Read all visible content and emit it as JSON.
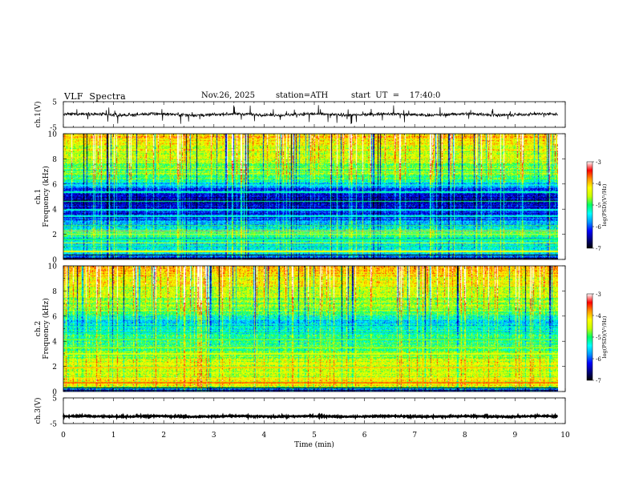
{
  "header": {
    "title": "VLF  Spectra",
    "date": "Nov.26, 2025",
    "station": "station=ATH",
    "start_ut": "start  UT  =    17:40:0"
  },
  "colors": {
    "colormap": [
      "#000000",
      "#000080",
      "#0000ff",
      "#0096ff",
      "#00ffff",
      "#00ff64",
      "#c8ff00",
      "#ffff00",
      "#ff9600",
      "#ff0000",
      "#ffffff"
    ],
    "trace": "#000000"
  },
  "chart_data": [
    {
      "type": "line",
      "id": "ch1",
      "ylabel": "ch.1(V)",
      "xlim": [
        0,
        10
      ],
      "ylim": [
        -5,
        5
      ],
      "yticks": [
        "5",
        "-5"
      ],
      "trace_level": 0,
      "noise_amplitude": 0.6,
      "spike_amplitude": 2.2
    },
    {
      "type": "heatmap",
      "id": "ch1-spectrogram",
      "ylabel_top": "ch.1",
      "ylabel": "Frequency  (kHz)",
      "xlim": [
        0,
        9.85
      ],
      "ylim": [
        0,
        10
      ],
      "yticks": [
        "0",
        "2",
        "4",
        "6",
        "8",
        "10"
      ],
      "colorbar": {
        "label": "log(PSD)(V²/Hz)",
        "range": [
          -7,
          -3
        ],
        "ticks": [
          "-3",
          "-4",
          "-5",
          "-6",
          "-7"
        ]
      },
      "profile_kHz": [
        [
          0.0,
          -6.9
        ],
        [
          0.5,
          -5.3
        ],
        [
          1.0,
          -5.4
        ],
        [
          1.6,
          -5.6
        ],
        [
          2.1,
          -4.9
        ],
        [
          2.6,
          -5.6
        ],
        [
          3.2,
          -6.1
        ],
        [
          3.8,
          -6.3
        ],
        [
          4.6,
          -6.5
        ],
        [
          5.3,
          -6.3
        ],
        [
          5.8,
          -5.9
        ],
        [
          6.5,
          -5.0
        ],
        [
          8.0,
          -4.7
        ],
        [
          10.0,
          -4.3
        ]
      ],
      "bands_kHz": [
        [
          0.1,
          -6.9
        ],
        [
          0.35,
          -7.0
        ],
        [
          0.65,
          -4.2
        ],
        [
          1.05,
          -5.0
        ],
        [
          1.3,
          -4.4
        ],
        [
          1.6,
          -5.0
        ],
        [
          2.0,
          -4.3
        ],
        [
          2.25,
          -4.0
        ],
        [
          2.7,
          -4.9
        ],
        [
          3.45,
          -5.3
        ],
        [
          3.95,
          -5.3
        ],
        [
          4.6,
          -5.0
        ],
        [
          5.35,
          -5.2
        ],
        [
          5.9,
          -5.4
        ]
      ]
    },
    {
      "type": "heatmap",
      "id": "ch2-spectrogram",
      "ylabel_top": "ch.2",
      "ylabel": "Frequency  (kHz)",
      "xlim": [
        0,
        9.85
      ],
      "ylim": [
        0,
        10
      ],
      "yticks": [
        "0",
        "2",
        "4",
        "6",
        "8",
        "10"
      ],
      "colorbar": {
        "label": "log(PSD)(V²/Hz)",
        "range": [
          -7,
          -3
        ],
        "ticks": [
          "-3",
          "-4",
          "-5",
          "-6",
          "-7"
        ]
      },
      "profile_kHz": [
        [
          0.0,
          -6.6
        ],
        [
          0.5,
          -4.2
        ],
        [
          1.0,
          -4.6
        ],
        [
          1.7,
          -4.7
        ],
        [
          2.4,
          -4.6
        ],
        [
          3.2,
          -5.0
        ],
        [
          4.2,
          -5.2
        ],
        [
          5.0,
          -5.4
        ],
        [
          5.6,
          -5.7
        ],
        [
          6.3,
          -5.0
        ],
        [
          8.0,
          -4.6
        ],
        [
          10.0,
          -4.2
        ]
      ],
      "bands_kHz": [
        [
          0.1,
          -6.9
        ],
        [
          0.3,
          -7.0
        ],
        [
          0.7,
          -3.7
        ],
        [
          1.05,
          -4.1
        ],
        [
          1.5,
          -4.4
        ],
        [
          1.9,
          -4.0
        ],
        [
          2.2,
          -4.2
        ],
        [
          3.0,
          -4.4
        ],
        [
          3.5,
          -4.7
        ],
        [
          4.15,
          -4.8
        ],
        [
          4.7,
          -5.0
        ],
        [
          5.2,
          -5.1
        ]
      ]
    },
    {
      "type": "line",
      "id": "ch3",
      "ylabel": "ch.3(V)",
      "xlabel": "Time  (min)",
      "xlim": [
        0,
        10
      ],
      "ylim": [
        -5,
        5
      ],
      "xticks": [
        "0",
        "1",
        "2",
        "3",
        "4",
        "5",
        "6",
        "7",
        "8",
        "9",
        "10"
      ],
      "yticks": [
        "5",
        "-5"
      ],
      "trace_level": -2.2,
      "noise_amplitude": 0.25,
      "spike_amplitude": 0
    }
  ]
}
